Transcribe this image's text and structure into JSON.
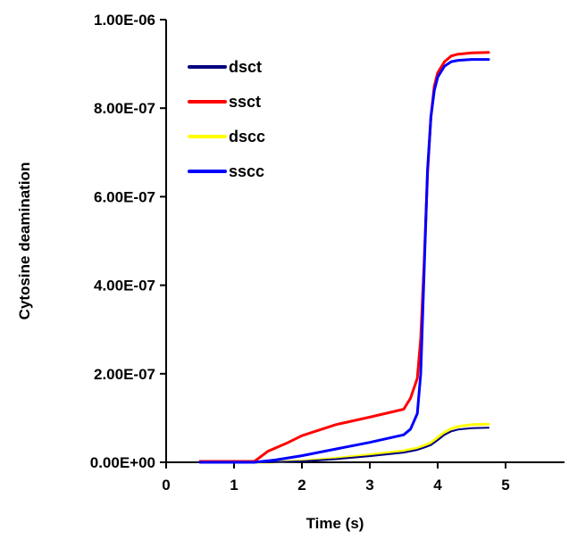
{
  "chart_data": {
    "type": "line",
    "title": "",
    "xlabel": "Time (s)",
    "ylabel": "Cytosine deamination",
    "xlim": [
      0,
      5
    ],
    "ylim": [
      0,
      1e-06
    ],
    "x_ticks": [
      {
        "value": 0,
        "label": "0"
      },
      {
        "value": 1,
        "label": "1"
      },
      {
        "value": 2,
        "label": "2"
      },
      {
        "value": 3,
        "label": "3"
      },
      {
        "value": 4,
        "label": "4"
      },
      {
        "value": 5,
        "label": "5"
      }
    ],
    "y_ticks": [
      {
        "value": 0,
        "label": "0.00E+00"
      },
      {
        "value": 2e-07,
        "label": "2.00E-07"
      },
      {
        "value": 4e-07,
        "label": "4.00E-07"
      },
      {
        "value": 6e-07,
        "label": "6.00E-07"
      },
      {
        "value": 8e-07,
        "label": "8.00E-07"
      },
      {
        "value": 1e-06,
        "label": "1.00E-06"
      }
    ],
    "grid": false,
    "legend_position": "top-left",
    "series": [
      {
        "name": "dsct",
        "color": "#000080",
        "x": [
          0.5,
          1.0,
          1.5,
          2.0,
          2.5,
          3.0,
          3.5,
          3.7,
          3.8,
          3.9,
          4.0,
          4.1,
          4.2,
          4.3,
          4.5,
          4.75
        ],
        "y": [
          0,
          0,
          0,
          2e-09,
          7e-09,
          1.4e-08,
          2.2e-08,
          2.8e-08,
          3.3e-08,
          3.9e-08,
          5e-08,
          6.2e-08,
          7e-08,
          7.4e-08,
          7.7e-08,
          7.8e-08
        ]
      },
      {
        "name": "ssct",
        "color": "#ff0000",
        "x": [
          0.5,
          1.0,
          1.3,
          1.5,
          1.8,
          2.0,
          2.5,
          3.0,
          3.5,
          3.6,
          3.7,
          3.75,
          3.8,
          3.85,
          3.9,
          3.95,
          4.0,
          4.1,
          4.2,
          4.3,
          4.5,
          4.75
        ],
        "y": [
          2e-09,
          2e-09,
          2e-09,
          2.5e-08,
          4.5e-08,
          6e-08,
          8.5e-08,
          1.02e-07,
          1.2e-07,
          1.45e-07,
          1.9e-07,
          2.8e-07,
          4.5e-07,
          6.5e-07,
          7.8e-07,
          8.5e-07,
          8.8e-07,
          9.05e-07,
          9.18e-07,
          9.22e-07,
          9.25e-07,
          9.26e-07
        ]
      },
      {
        "name": "dscc",
        "color": "#ffff00",
        "x": [
          0.5,
          1.0,
          1.5,
          2.0,
          2.5,
          3.0,
          3.5,
          3.7,
          3.8,
          3.9,
          4.0,
          4.1,
          4.2,
          4.3,
          4.5,
          4.75
        ],
        "y": [
          0,
          0,
          0,
          3e-09,
          9e-09,
          1.7e-08,
          2.6e-08,
          3.2e-08,
          3.8e-08,
          4.4e-08,
          5.6e-08,
          6.8e-08,
          7.6e-08,
          8.1e-08,
          8.5e-08,
          8.6e-08
        ]
      },
      {
        "name": "sscc",
        "color": "#0000ff",
        "x": [
          0.5,
          1.0,
          1.3,
          1.6,
          2.0,
          2.5,
          3.0,
          3.5,
          3.6,
          3.7,
          3.75,
          3.8,
          3.85,
          3.9,
          3.95,
          4.0,
          4.1,
          4.2,
          4.3,
          4.5,
          4.75
        ],
        "y": [
          0,
          0,
          0,
          5e-09,
          1.5e-08,
          3e-08,
          4.5e-08,
          6.2e-08,
          7.5e-08,
          1.1e-07,
          2e-07,
          4.3e-07,
          6.6e-07,
          7.8e-07,
          8.4e-07,
          8.7e-07,
          8.95e-07,
          9.05e-07,
          9.08e-07,
          9.1e-07,
          9.1e-07
        ]
      }
    ]
  }
}
